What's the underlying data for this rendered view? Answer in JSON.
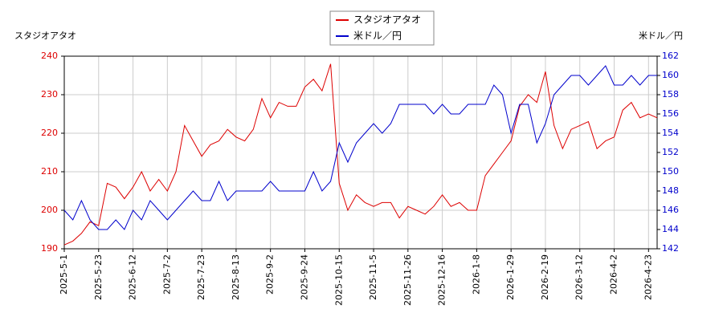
{
  "chart_data": {
    "type": "line",
    "y_label": "スタジオアタオ",
    "y2_label": "米ドル／円",
    "categories": [
      "2025-5-1",
      null,
      null,
      null,
      "2025-5-23",
      null,
      null,
      null,
      "2025-6-12",
      null,
      null,
      null,
      "2025-7-2",
      null,
      null,
      null,
      "2025-7-23",
      null,
      null,
      null,
      "2025-8-13",
      null,
      null,
      null,
      "2025-9-2",
      null,
      null,
      null,
      "2025-9-24",
      null,
      null,
      null,
      "2025-10-15",
      null,
      null,
      null,
      "2025-11-5",
      null,
      null,
      null,
      "2025-11-26",
      null,
      null,
      null,
      "2025-12-16",
      null,
      null,
      null,
      "2026-1-8",
      null,
      null,
      null,
      "2026-1-29",
      null,
      null,
      null,
      "2026-2-19",
      null,
      null,
      null,
      "2026-3-12",
      null,
      null,
      null,
      "2026-4-2",
      null,
      null,
      null,
      "2026-4-23",
      null
    ],
    "series": [
      {
        "name": "スタジオアタオ",
        "color": "#dd0000",
        "axis": "y",
        "values": [
          191,
          192,
          194,
          197,
          196,
          207,
          206,
          203,
          206,
          210,
          205,
          208,
          205,
          210,
          222,
          218,
          214,
          217,
          218,
          221,
          219,
          218,
          221,
          229,
          224,
          228,
          227,
          227,
          232,
          234,
          231,
          238,
          207,
          200,
          204,
          202,
          201,
          202,
          202,
          198,
          201,
          200,
          199,
          201,
          204,
          201,
          202,
          200,
          200,
          209,
          212,
          215,
          218,
          227,
          230,
          228,
          236,
          222,
          216,
          221,
          222,
          223,
          216,
          218,
          219,
          226,
          228,
          224,
          225,
          224
        ]
      },
      {
        "name": "米ドル／円",
        "color": "#0000cc",
        "axis": "y2",
        "values": [
          146,
          145,
          147,
          145,
          144,
          144,
          145,
          144,
          146,
          145,
          147,
          146,
          145,
          146,
          147,
          148,
          147,
          147,
          149,
          147,
          148,
          148,
          148,
          148,
          149,
          148,
          148,
          148,
          148,
          150,
          148,
          149,
          153,
          151,
          153,
          154,
          155,
          154,
          155,
          157,
          157,
          157,
          157,
          156,
          157,
          156,
          156,
          157,
          157,
          157,
          159,
          158,
          154,
          157,
          157,
          153,
          155,
          158,
          159,
          160,
          160,
          159,
          160,
          161,
          159,
          159,
          160,
          159,
          160,
          160
        ]
      }
    ],
    "ylim": [
      190,
      240
    ],
    "yticks": [
      190,
      200,
      210,
      220,
      230,
      240
    ],
    "y2lim": [
      142,
      162
    ],
    "y2ticks": [
      142,
      144,
      146,
      148,
      150,
      152,
      154,
      156,
      158,
      160,
      162
    ],
    "grid": true,
    "legend": "top"
  }
}
